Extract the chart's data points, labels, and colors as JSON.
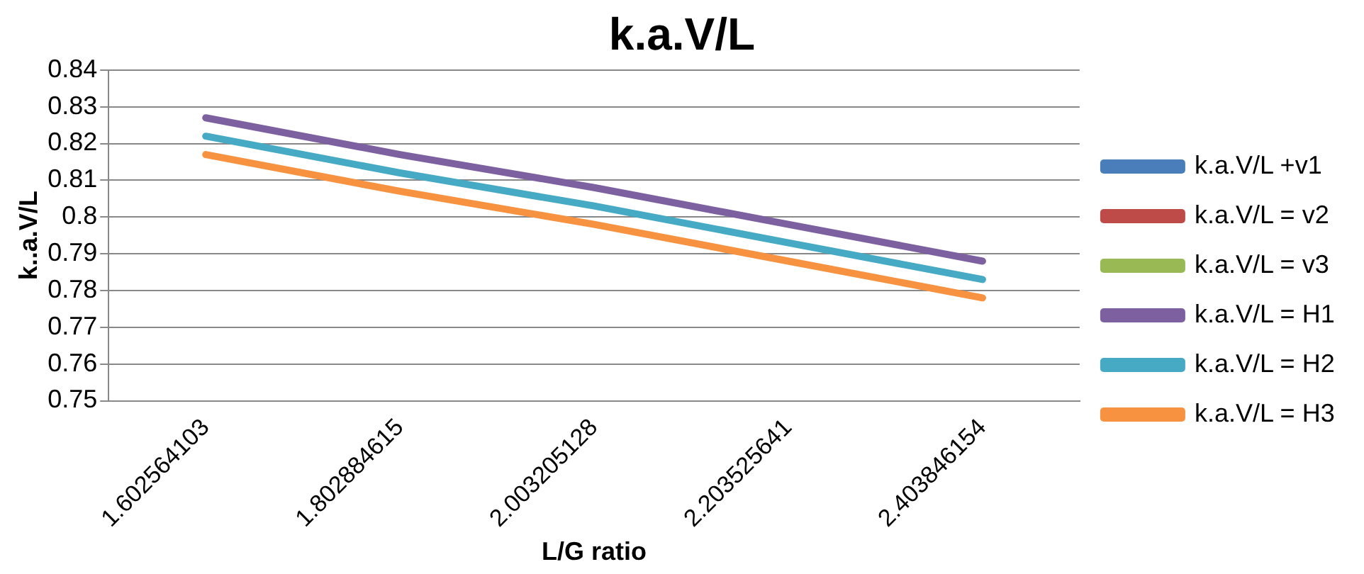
{
  "chart_data": {
    "type": "line",
    "title": "k.a.V/L",
    "xlabel": "L/G ratio",
    "ylabel": "k..a.V/L",
    "categories": [
      "1.602564103",
      "1.802884615",
      "2.003205128",
      "2.203525641",
      "2.403846154"
    ],
    "series": [
      {
        "name": "k.a.V/L +v1",
        "color": "#4a7ebb",
        "values": [
          null,
          null,
          null,
          null,
          null
        ]
      },
      {
        "name": "k.a.V/L = v2",
        "color": "#be4b48",
        "values": [
          null,
          null,
          null,
          null,
          null
        ]
      },
      {
        "name": "k.a.V/L = v3",
        "color": "#98b954",
        "values": [
          null,
          null,
          null,
          null,
          null
        ]
      },
      {
        "name": "k.a.V/L = H1",
        "color": "#7d60a0",
        "values": [
          0.827,
          0.817,
          0.808,
          0.798,
          0.788
        ]
      },
      {
        "name": "k.a.V/L = H2",
        "color": "#46aac5",
        "values": [
          0.822,
          0.812,
          0.803,
          0.793,
          0.783
        ]
      },
      {
        "name": "k.a.V/L = H3",
        "color": "#f69240",
        "values": [
          0.817,
          0.807,
          0.798,
          0.788,
          0.778
        ]
      }
    ],
    "ylim": [
      0.75,
      0.84
    ],
    "yticks": [
      0.75,
      0.76,
      0.77,
      0.78,
      0.79,
      0.8,
      0.81,
      0.82,
      0.83,
      0.84
    ],
    "grid": "y",
    "legend": "right",
    "marker": "none",
    "line_style": "solid"
  }
}
